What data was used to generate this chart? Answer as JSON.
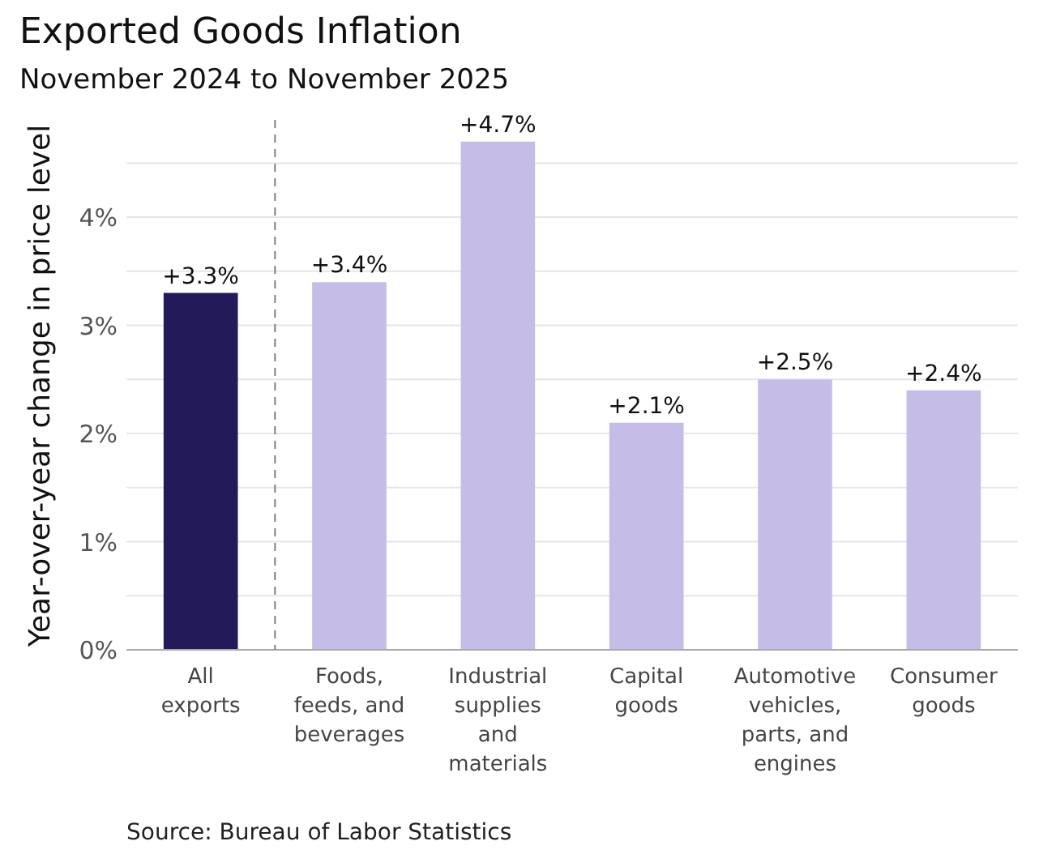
{
  "chart_data": {
    "type": "bar",
    "title": "Exported Goods Inflation",
    "subtitle": "November 2024 to November 2025",
    "ylabel": "Year-over-year change in price level",
    "categories": [
      "All exports",
      "Foods, feeds, and beverages",
      "Industrial supplies and materials",
      "Capital goods",
      "Automotive vehicles, parts, and engines",
      "Consumer goods"
    ],
    "values": [
      3.3,
      3.4,
      4.7,
      2.1,
      2.5,
      2.4
    ],
    "colors": [
      "#231a5a",
      "#c5bde8",
      "#c5bde8",
      "#c5bde8",
      "#c5bde8",
      "#c5bde8"
    ],
    "value_labels": [
      "+3.3%",
      "+3.4%",
      "+4.7%",
      "+2.1%",
      "+2.5%",
      "+2.4%"
    ],
    "ylim": [
      0,
      4.9
    ],
    "yticks": [
      {
        "value": 0,
        "label": "0%"
      },
      {
        "value": 0.5,
        "label": null
      },
      {
        "value": 1,
        "label": "1%"
      },
      {
        "value": 1.5,
        "label": null
      },
      {
        "value": 2,
        "label": "2%"
      },
      {
        "value": 2.5,
        "label": null
      },
      {
        "value": 3,
        "label": "3%"
      },
      {
        "value": 3.5,
        "label": null
      },
      {
        "value": 4,
        "label": "4%"
      },
      {
        "value": 4.5,
        "label": null
      }
    ],
    "grid": "y",
    "ref_lines": [
      {
        "axis": "x",
        "value": "All exports",
        "line_style": "dashed",
        "color": "#7f7f7f"
      }
    ],
    "annotations": [
      "Source: Bureau of Labor Statistics"
    ]
  }
}
